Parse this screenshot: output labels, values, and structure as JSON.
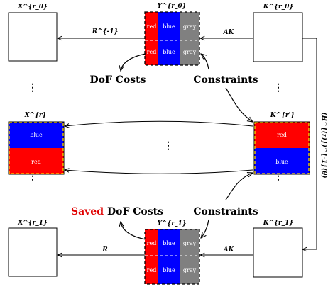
{
  "matrices": {
    "x_r0": "X^{r_0}",
    "y_r0": "Y^{r_0}",
    "k_r0": "K^{r_0}",
    "x_r": "X^{r}",
    "k_r_prime": "K^{r'}",
    "x_r1": "X^{r_1}",
    "y_r1": "Y^{r_1}",
    "k_r1": "K^{r_1}"
  },
  "arrow_labels": {
    "r_inv": "R^{-1}",
    "ak_top": "AK",
    "r": "R",
    "ak_bottom": "AK",
    "side": "(H^{(r)})^{-1}(θ)"
  },
  "cells": {
    "red": "red",
    "blue": "blue",
    "gray": "gray"
  },
  "texts": {
    "dof_costs": "DoF Costs",
    "constraints_top": "Constraints",
    "saved": "Saved",
    "saved_dof_costs": "DoF Costs",
    "constraints_bottom": "Constraints"
  },
  "colors": {
    "red": "#ff0000",
    "blue": "#0000ff",
    "gray": "#808080",
    "highlight": "#ffd700",
    "saved": "#e00000"
  }
}
